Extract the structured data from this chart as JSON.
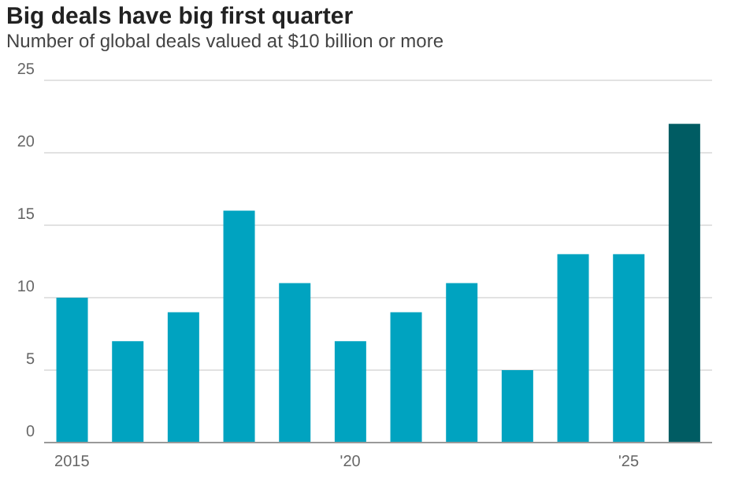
{
  "chart_data": {
    "type": "bar",
    "title": "Big deals have big first quarter",
    "subtitle": "Number of global deals valued at $10 billion or more",
    "categories": [
      "2015",
      null,
      null,
      null,
      null,
      "'20",
      null,
      null,
      null,
      null,
      "'25",
      null
    ],
    "values": [
      10,
      7,
      9,
      16,
      11,
      7,
      9,
      11,
      5,
      13,
      13,
      22
    ],
    "colors": [
      "#00a3c0",
      "#00a3c0",
      "#00a3c0",
      "#00a3c0",
      "#00a3c0",
      "#00a3c0",
      "#00a3c0",
      "#00a3c0",
      "#00a3c0",
      "#00a3c0",
      "#00a3c0",
      "#005c63"
    ],
    "ylim": [
      0,
      25
    ],
    "yticks": [
      0,
      5,
      10,
      15,
      20,
      25
    ],
    "grid": "y"
  }
}
